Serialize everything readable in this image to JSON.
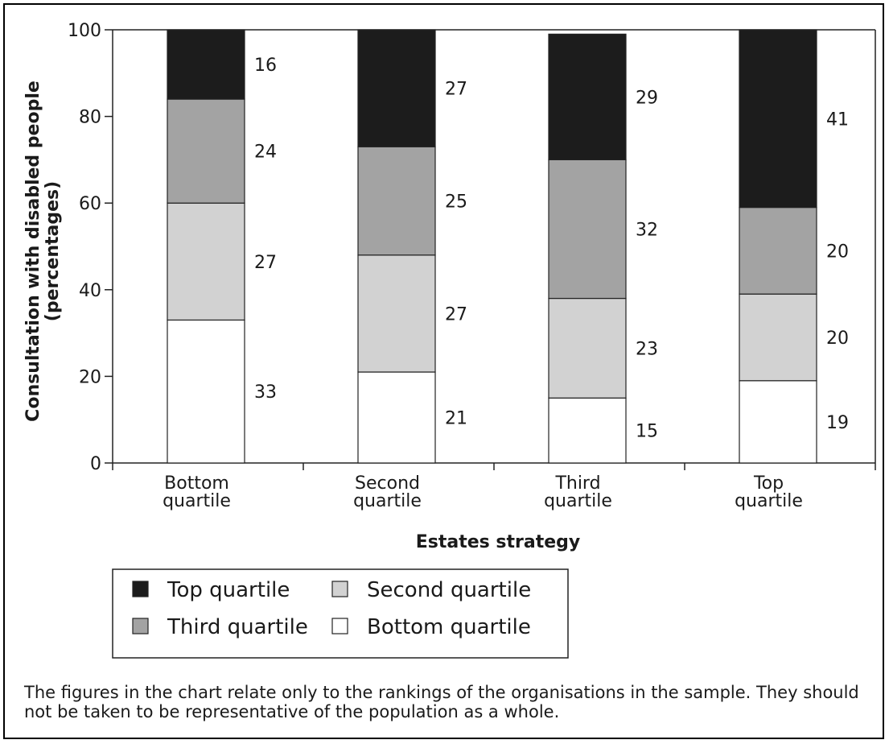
{
  "chart_data": {
    "type": "bar",
    "stacked": true,
    "categories": [
      "Bottom\nquartile",
      "Second\nquartile",
      "Third\nquartile",
      "Top\nquartile"
    ],
    "series": [
      {
        "name": "Bottom quartile",
        "values": [
          33,
          21,
          15,
          19
        ],
        "color": "#ffffff"
      },
      {
        "name": "Second quartile",
        "values": [
          27,
          27,
          23,
          20
        ],
        "color": "#d2d2d2"
      },
      {
        "name": "Third quartile",
        "values": [
          24,
          25,
          32,
          20
        ],
        "color": "#a3a3a3"
      },
      {
        "name": "Top quartile",
        "values": [
          16,
          27,
          29,
          41
        ],
        "color": "#1c1c1c"
      }
    ],
    "xlabel": "Estates strategy",
    "ylabel": "Consultation with disabled people\n(percentages)",
    "ylim": [
      0,
      100
    ],
    "yticks": [
      0,
      20,
      40,
      60,
      80,
      100
    ],
    "legend_position": "bottom",
    "legend_order": [
      "Top quartile",
      "Second quartile",
      "Third quartile",
      "Bottom quartile"
    ],
    "grid": false
  },
  "footnote": "The figures in the chart relate only to the rankings of the organisations in the sample. They should not be taken to be representative of the population as  a whole."
}
